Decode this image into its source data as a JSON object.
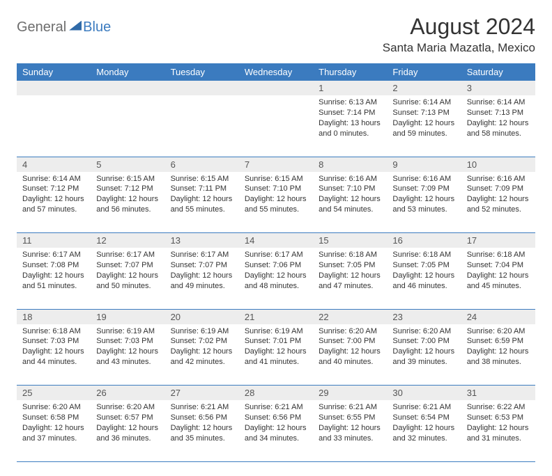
{
  "logo": {
    "general": "General",
    "blue": "Blue"
  },
  "title": "August 2024",
  "location": "Santa Maria Mazatla, Mexico",
  "colors": {
    "header_bg": "#3b7bbf",
    "header_text": "#ffffff",
    "daynum_bg": "#ededed",
    "border": "#3b7bbf",
    "text": "#333333"
  },
  "weekdays": [
    "Sunday",
    "Monday",
    "Tuesday",
    "Wednesday",
    "Thursday",
    "Friday",
    "Saturday"
  ],
  "weeks": [
    [
      null,
      null,
      null,
      null,
      {
        "n": "1",
        "sr": "6:13 AM",
        "ss": "7:14 PM",
        "dl": "13 hours and 0 minutes."
      },
      {
        "n": "2",
        "sr": "6:14 AM",
        "ss": "7:13 PM",
        "dl": "12 hours and 59 minutes."
      },
      {
        "n": "3",
        "sr": "6:14 AM",
        "ss": "7:13 PM",
        "dl": "12 hours and 58 minutes."
      }
    ],
    [
      {
        "n": "4",
        "sr": "6:14 AM",
        "ss": "7:12 PM",
        "dl": "12 hours and 57 minutes."
      },
      {
        "n": "5",
        "sr": "6:15 AM",
        "ss": "7:12 PM",
        "dl": "12 hours and 56 minutes."
      },
      {
        "n": "6",
        "sr": "6:15 AM",
        "ss": "7:11 PM",
        "dl": "12 hours and 55 minutes."
      },
      {
        "n": "7",
        "sr": "6:15 AM",
        "ss": "7:10 PM",
        "dl": "12 hours and 55 minutes."
      },
      {
        "n": "8",
        "sr": "6:16 AM",
        "ss": "7:10 PM",
        "dl": "12 hours and 54 minutes."
      },
      {
        "n": "9",
        "sr": "6:16 AM",
        "ss": "7:09 PM",
        "dl": "12 hours and 53 minutes."
      },
      {
        "n": "10",
        "sr": "6:16 AM",
        "ss": "7:09 PM",
        "dl": "12 hours and 52 minutes."
      }
    ],
    [
      {
        "n": "11",
        "sr": "6:17 AM",
        "ss": "7:08 PM",
        "dl": "12 hours and 51 minutes."
      },
      {
        "n": "12",
        "sr": "6:17 AM",
        "ss": "7:07 PM",
        "dl": "12 hours and 50 minutes."
      },
      {
        "n": "13",
        "sr": "6:17 AM",
        "ss": "7:07 PM",
        "dl": "12 hours and 49 minutes."
      },
      {
        "n": "14",
        "sr": "6:17 AM",
        "ss": "7:06 PM",
        "dl": "12 hours and 48 minutes."
      },
      {
        "n": "15",
        "sr": "6:18 AM",
        "ss": "7:05 PM",
        "dl": "12 hours and 47 minutes."
      },
      {
        "n": "16",
        "sr": "6:18 AM",
        "ss": "7:05 PM",
        "dl": "12 hours and 46 minutes."
      },
      {
        "n": "17",
        "sr": "6:18 AM",
        "ss": "7:04 PM",
        "dl": "12 hours and 45 minutes."
      }
    ],
    [
      {
        "n": "18",
        "sr": "6:18 AM",
        "ss": "7:03 PM",
        "dl": "12 hours and 44 minutes."
      },
      {
        "n": "19",
        "sr": "6:19 AM",
        "ss": "7:03 PM",
        "dl": "12 hours and 43 minutes."
      },
      {
        "n": "20",
        "sr": "6:19 AM",
        "ss": "7:02 PM",
        "dl": "12 hours and 42 minutes."
      },
      {
        "n": "21",
        "sr": "6:19 AM",
        "ss": "7:01 PM",
        "dl": "12 hours and 41 minutes."
      },
      {
        "n": "22",
        "sr": "6:20 AM",
        "ss": "7:00 PM",
        "dl": "12 hours and 40 minutes."
      },
      {
        "n": "23",
        "sr": "6:20 AM",
        "ss": "7:00 PM",
        "dl": "12 hours and 39 minutes."
      },
      {
        "n": "24",
        "sr": "6:20 AM",
        "ss": "6:59 PM",
        "dl": "12 hours and 38 minutes."
      }
    ],
    [
      {
        "n": "25",
        "sr": "6:20 AM",
        "ss": "6:58 PM",
        "dl": "12 hours and 37 minutes."
      },
      {
        "n": "26",
        "sr": "6:20 AM",
        "ss": "6:57 PM",
        "dl": "12 hours and 36 minutes."
      },
      {
        "n": "27",
        "sr": "6:21 AM",
        "ss": "6:56 PM",
        "dl": "12 hours and 35 minutes."
      },
      {
        "n": "28",
        "sr": "6:21 AM",
        "ss": "6:56 PM",
        "dl": "12 hours and 34 minutes."
      },
      {
        "n": "29",
        "sr": "6:21 AM",
        "ss": "6:55 PM",
        "dl": "12 hours and 33 minutes."
      },
      {
        "n": "30",
        "sr": "6:21 AM",
        "ss": "6:54 PM",
        "dl": "12 hours and 32 minutes."
      },
      {
        "n": "31",
        "sr": "6:22 AM",
        "ss": "6:53 PM",
        "dl": "12 hours and 31 minutes."
      }
    ]
  ],
  "labels": {
    "sunrise": "Sunrise:",
    "sunset": "Sunset:",
    "daylight": "Daylight:"
  }
}
